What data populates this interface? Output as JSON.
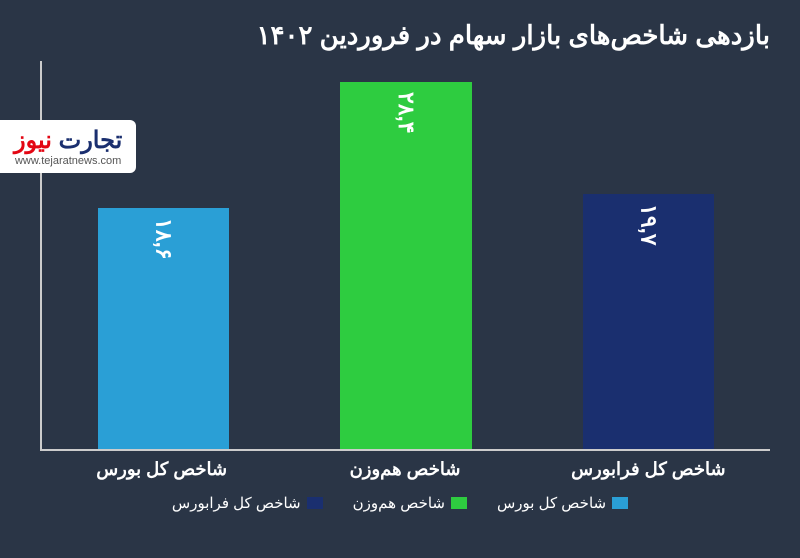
{
  "chart": {
    "type": "bar",
    "title": "بازدهی شاخص‌های بازار سهام در فروردین ۱۴۰۲",
    "title_fontsize": 26,
    "title_color": "#ffffff",
    "background_color": "#2a3546",
    "axis_color": "#cccccc",
    "ylim_max": 30,
    "bars": [
      {
        "category": "شاخص کل بورس",
        "value": 18.6,
        "display_value": "۱۸,۶",
        "color": "#2a9fd6"
      },
      {
        "category": "شاخص هم‌وزن",
        "value": 28.4,
        "display_value": "۲۸,۴",
        "color": "#2ecc40"
      },
      {
        "category": "شاخص کل فرابورس",
        "value": 19.7,
        "display_value": "۱۹,۷",
        "color": "#1a2f6f"
      }
    ],
    "x_label_color": "#ffffff",
    "x_label_fontsize": 18,
    "bar_label_color": "#ffffff",
    "bar_label_fontsize": 22,
    "bar_width_pct": 18,
    "legend": {
      "items": [
        {
          "label": "شاخص کل بورس",
          "color": "#2a9fd6"
        },
        {
          "label": "شاخص هم‌وزن",
          "color": "#2ecc40"
        },
        {
          "label": "شاخص کل فرابورس",
          "color": "#1a2f6f"
        }
      ],
      "text_color": "#ffffff",
      "fontsize": 15
    }
  },
  "logo": {
    "text": "تجارت نیوز",
    "brand_color_primary": "#1a2f6f",
    "brand_color_accent": "#e30613",
    "url": "www.tejaratnews.com"
  }
}
